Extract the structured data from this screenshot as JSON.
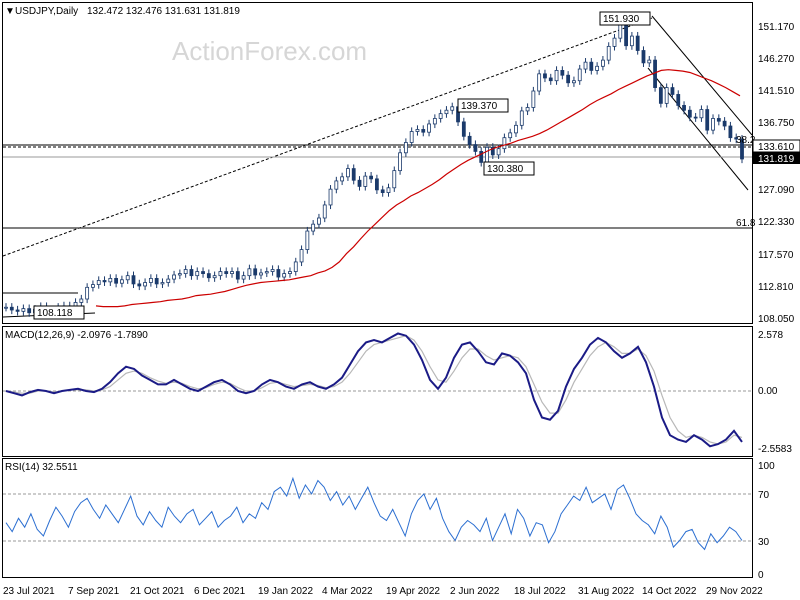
{
  "chart_data": [
    {
      "type": "line",
      "title": "USDJPY,Daily",
      "ohlc": "132.472 132.476 131.631 131.819",
      "watermark": "ActionForex.com",
      "ylim": [
        107.5,
        154.5
      ],
      "y_ticks": [
        "151.170",
        "146.270",
        "141.510",
        "136.750",
        "133.610",
        "131.819",
        "127.090",
        "122.330",
        "117.570",
        "112.810",
        "108.050"
      ],
      "x_ticks": [
        "23 Jul 2021",
        "7 Sep 2021",
        "21 Oct 2021",
        "6 Dec 2021",
        "19 Jan 2022",
        "4 Mar 2022",
        "19 Apr 2022",
        "2 Jun 2022",
        "18 Jul 2022",
        "31 Aug 2022",
        "14 Oct 2022",
        "29 Nov 2022"
      ],
      "series": [
        {
          "values": [
            110.2,
            109.8,
            109.6,
            110.0,
            109.4,
            109.9,
            110.3,
            109.6,
            109.8,
            110.2,
            110.4,
            109.9,
            110.9,
            111.4,
            113.1,
            113.5,
            114.1,
            113.9,
            114.4,
            113.7,
            114.2,
            114.8,
            113.6,
            113.3,
            113.8,
            114.4,
            113.6,
            113.8,
            114.3,
            114.9,
            115.1,
            115.7,
            114.8,
            115.4,
            115.1,
            114.5,
            114.8,
            115.4,
            115.1,
            115.4,
            114.3,
            114.8,
            115.8,
            114.9,
            115.2,
            115.4,
            115.7,
            114.6,
            115.1,
            115.4,
            116.8,
            118.6,
            121.3,
            122.3,
            123.2,
            125.1,
            127.4,
            128.6,
            129.2,
            130.4,
            128.7,
            127.8,
            129.3,
            128.9,
            127.3,
            126.9,
            127.6,
            130.1,
            132.7,
            134.2,
            135.8,
            136.1,
            135.7,
            136.9,
            137.7,
            138.4,
            138.9,
            139.4,
            137.2,
            135.1,
            133.9,
            132.9,
            131.3,
            133.5,
            132.4,
            133.3,
            134.9,
            135.6,
            136.7,
            138.8,
            139.3,
            141.7,
            144.2,
            143.6,
            143.2,
            144.7,
            144.0,
            142.9,
            143.2,
            144.9,
            145.9,
            144.7,
            145.3,
            146.2,
            148.2,
            149.4,
            151.9,
            148.3,
            149.7,
            147.6,
            145.8,
            146.2,
            142.2,
            139.9,
            142.2,
            141.2,
            139.6,
            138.9,
            137.9,
            137.8,
            139.0,
            136.0,
            137.7,
            137.3,
            136.6,
            134.9,
            134.7,
            131.8
          ]
        },
        {
          "name": "MA",
          "values": [
            110.4,
            110.3,
            110.3,
            110.3,
            110.4,
            110.6,
            110.7,
            110.8,
            110.9,
            111.0,
            111.2,
            111.3,
            111.4,
            111.6,
            111.9,
            112.0,
            112.1,
            112.3,
            112.5,
            112.8,
            113.1,
            113.4,
            113.6,
            113.8,
            113.9,
            114.0,
            114.1,
            114.2,
            114.4,
            114.6,
            114.8,
            115.2,
            115.5,
            116.0,
            116.8,
            118.0,
            119.0,
            120.2,
            121.3,
            122.3,
            123.3,
            124.3,
            125.1,
            125.7,
            126.4,
            126.9,
            127.5,
            128.1,
            128.8,
            129.6,
            130.3,
            131.0,
            131.6,
            132.1,
            132.6,
            133.1,
            133.5,
            133.8,
            134.1,
            134.5,
            134.8,
            135.1,
            135.5,
            136.0,
            136.6,
            137.2,
            137.8,
            138.4,
            139.0,
            139.7,
            140.3,
            140.8,
            141.3,
            141.9,
            142.4,
            142.9,
            143.4,
            143.9,
            144.3,
            144.7,
            144.8,
            144.7,
            144.6,
            144.4,
            144.0,
            143.6,
            143.2,
            142.7,
            142.2,
            141.6,
            141.0
          ]
        }
      ],
      "annotations": [
        "151.930",
        "139.370",
        "130.380",
        "108.118",
        "38.2",
        "61.8"
      ]
    },
    {
      "type": "line",
      "title": "MACD(12,26,9) -2.0976 -1.7890",
      "y_ticks": [
        "2.578",
        "0.00",
        "-2.5583"
      ],
      "ylim": [
        -3.0,
        2.8
      ],
      "series": [
        {
          "name": "MACD",
          "values": [
            0.0,
            -0.1,
            -0.2,
            -0.05,
            0.05,
            0.0,
            -0.1,
            0.0,
            0.05,
            0.1,
            0.0,
            -0.05,
            0.1,
            0.4,
            0.8,
            1.1,
            1.0,
            0.7,
            0.5,
            0.3,
            0.3,
            0.5,
            0.3,
            0.1,
            0.0,
            0.2,
            0.4,
            0.5,
            0.3,
            0.0,
            -0.1,
            0.0,
            0.3,
            0.5,
            0.4,
            0.2,
            0.1,
            0.3,
            0.4,
            0.2,
            0.1,
            0.3,
            0.6,
            1.2,
            1.8,
            2.2,
            2.3,
            2.2,
            2.4,
            2.6,
            2.5,
            2.1,
            1.4,
            0.5,
            0.1,
            0.6,
            1.5,
            2.1,
            2.2,
            1.8,
            1.3,
            1.2,
            1.7,
            1.6,
            1.3,
            0.8,
            -0.4,
            -1.2,
            -1.3,
            -0.9,
            0.2,
            1.0,
            1.5,
            2.1,
            2.4,
            2.2,
            1.8,
            1.5,
            1.7,
            2.0,
            1.3,
            0.2,
            -1.2,
            -2.0,
            -2.2,
            -2.3,
            -2.0,
            -2.2,
            -2.5,
            -2.4,
            -2.2,
            -1.8,
            -2.3
          ]
        },
        {
          "name": "Signal",
          "values": [
            0.0,
            -0.05,
            -0.1,
            -0.1,
            0.0,
            0.0,
            -0.05,
            0.0,
            0.05,
            0.05,
            0.05,
            0.0,
            0.05,
            0.2,
            0.5,
            0.8,
            0.9,
            0.8,
            0.6,
            0.45,
            0.35,
            0.4,
            0.35,
            0.2,
            0.1,
            0.15,
            0.3,
            0.4,
            0.35,
            0.15,
            0.0,
            0.0,
            0.15,
            0.35,
            0.4,
            0.3,
            0.2,
            0.25,
            0.3,
            0.25,
            0.15,
            0.2,
            0.4,
            0.8,
            1.3,
            1.8,
            2.1,
            2.2,
            2.3,
            2.4,
            2.5,
            2.3,
            1.8,
            1.1,
            0.5,
            0.4,
            0.9,
            1.5,
            1.9,
            1.9,
            1.6,
            1.4,
            1.5,
            1.6,
            1.5,
            1.1,
            0.3,
            -0.5,
            -1.0,
            -1.0,
            -0.4,
            0.4,
            1.0,
            1.6,
            2.0,
            2.2,
            2.0,
            1.7,
            1.7,
            1.9,
            1.6,
            0.9,
            -0.2,
            -1.2,
            -1.8,
            -2.1,
            -2.0,
            -2.1,
            -2.3,
            -2.4,
            -2.3,
            -2.0,
            -2.1
          ]
        }
      ]
    },
    {
      "type": "line",
      "title": "RSI(14) 32.5511",
      "y_ticks": [
        "100",
        "70",
        "30",
        "0"
      ],
      "ylim": [
        0,
        100
      ],
      "series": [
        {
          "name": "RSI",
          "values": [
            48,
            40,
            52,
            44,
            56,
            42,
            36,
            50,
            62,
            54,
            44,
            58,
            66,
            70,
            60,
            52,
            64,
            56,
            48,
            60,
            72,
            54,
            46,
            58,
            50,
            44,
            62,
            54,
            48,
            56,
            60,
            46,
            52,
            58,
            44,
            50,
            54,
            62,
            48,
            56,
            52,
            66,
            60,
            76,
            80,
            72,
            88,
            70,
            82,
            74,
            86,
            80,
            68,
            76,
            64,
            72,
            60,
            70,
            80,
            66,
            54,
            50,
            60,
            48,
            36,
            56,
            68,
            74,
            60,
            70,
            52,
            40,
            32,
            44,
            50,
            46,
            40,
            52,
            32,
            44,
            56,
            38,
            60,
            52,
            36,
            48,
            46,
            30,
            40,
            56,
            64,
            72,
            68,
            80,
            66,
            70,
            74,
            60,
            78,
            82,
            70,
            56,
            50,
            46,
            38,
            54,
            44,
            26,
            32,
            40,
            42,
            30,
            24,
            38,
            30,
            36,
            44,
            40,
            32
          ]
        }
      ]
    }
  ]
}
